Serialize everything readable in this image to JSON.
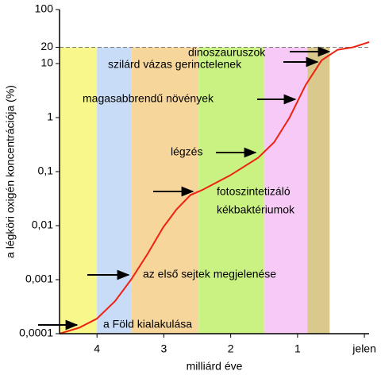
{
  "chart_data": {
    "type": "line",
    "x_label": "milliárd éve",
    "y_label": "a légköri oxigén koncentrációja (%)",
    "log_y": true,
    "xlim": [
      4.56,
      -0.07
    ],
    "ylim": [
      0.0001,
      100
    ],
    "xticks": [
      4,
      3,
      2,
      1,
      {
        "value": 0,
        "label": "jelen"
      }
    ],
    "yticks": [
      {
        "value": 0.0001,
        "label": "0,0001"
      },
      {
        "value": 0.001,
        "label": "0,001"
      },
      {
        "value": 0.01,
        "label": "0,01"
      },
      {
        "value": 0.1,
        "label": "0,1"
      },
      1,
      10,
      20,
      100
    ],
    "ref_line": 20,
    "bands": [
      {
        "from": 4.56,
        "to": 4.0,
        "color": "#f7f78c"
      },
      {
        "from": 4.0,
        "to": 3.49,
        "color": "#c9dcf7"
      },
      {
        "from": 3.49,
        "to": 2.48,
        "color": "#f7d69b"
      },
      {
        "from": 2.48,
        "to": 1.5,
        "color": "#c9f283"
      },
      {
        "from": 1.5,
        "to": 0.85,
        "color": "#f7c9f7"
      },
      {
        "from": 0.85,
        "to": 0.52,
        "color": "#d9c98c"
      }
    ],
    "series": [
      {
        "color": "#ee2211",
        "x": [
          4.56,
          4.26,
          4.0,
          3.73,
          3.49,
          3.25,
          3.01,
          2.81,
          2.6,
          2.42,
          2.01,
          1.59,
          1.35,
          1.12,
          0.88,
          0.64,
          0.4,
          0.17,
          -0.07
        ],
        "values": [
          0.0001,
          0.00013,
          0.00019,
          0.0004,
          0.001,
          0.0029,
          0.0093,
          0.02,
          0.037,
          0.046,
          0.085,
          0.18,
          0.35,
          1,
          4,
          11.5,
          18,
          20,
          25
        ]
      }
    ],
    "annotations": [
      "dinoszauruszok",
      "szilárd vázas gerinctelenek",
      "magasabbrendű növények",
      "légzés",
      "fotoszintetizáló",
      "kékbaktériumok",
      "az első sejtek megjelenése",
      "a Föld kialakulása"
    ]
  }
}
